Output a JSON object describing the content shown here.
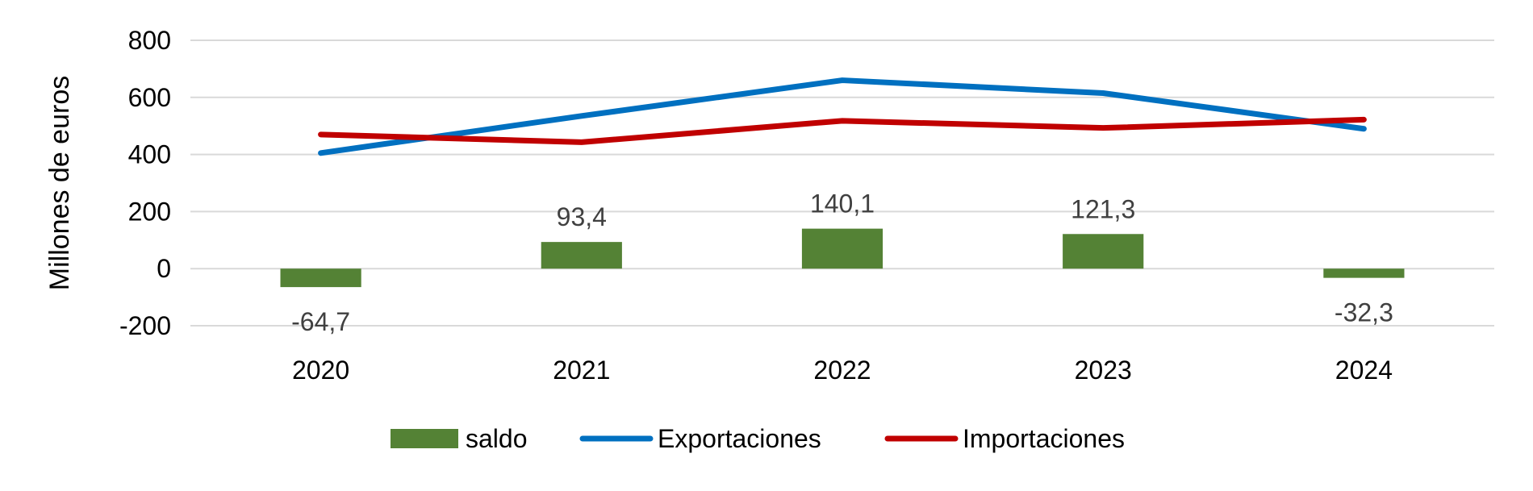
{
  "chart_data": {
    "type": "bar",
    "title": "",
    "xlabel": "",
    "ylabel": "Millones de euros",
    "ylim": [
      -200,
      800
    ],
    "yticks": [
      -200,
      0,
      200,
      400,
      600,
      800
    ],
    "categories": [
      "2020",
      "2021",
      "2022",
      "2023",
      "2024"
    ],
    "grid": true,
    "legend_position": "bottom",
    "series": [
      {
        "name": "saldo",
        "kind": "bar",
        "color": "#548235",
        "values": [
          -64.7,
          93.4,
          140.1,
          121.3,
          -32.3
        ],
        "labels": [
          "-64,7",
          "93,4",
          "140,1",
          "121,3",
          "-32,3"
        ]
      },
      {
        "name": "Exportaciones",
        "kind": "line",
        "color": "#0070c0",
        "values": [
          405,
          535,
          660,
          615,
          490
        ]
      },
      {
        "name": "Importaciones",
        "kind": "line",
        "color": "#c00000",
        "values": [
          470,
          443,
          518,
          493,
          522
        ]
      }
    ]
  }
}
